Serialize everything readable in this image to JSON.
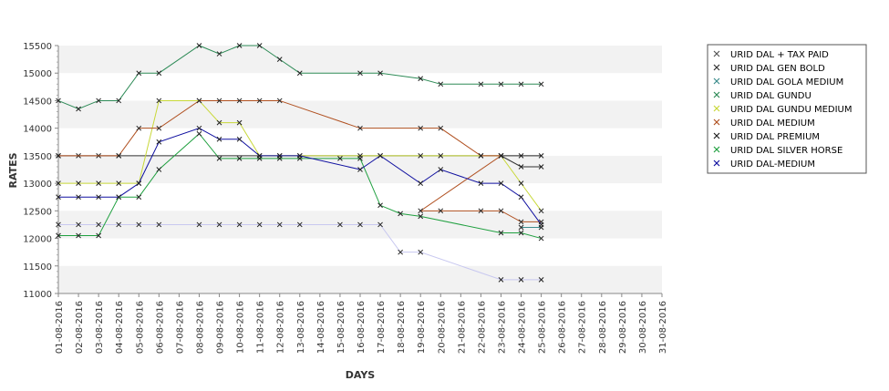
{
  "chart_data": {
    "type": "line",
    "title": "",
    "xlabel": "DAYS",
    "ylabel": "RATES",
    "ylim": [
      11000,
      15500
    ],
    "yticks": [
      11000,
      11500,
      12000,
      12500,
      13000,
      13500,
      14000,
      14500,
      15000,
      15500
    ],
    "grid": "alternating horizontal bands",
    "legend_position": "right",
    "categories": [
      "01-08-2016",
      "02-08-2016",
      "03-08-2016",
      "04-08-2016",
      "05-08-2016",
      "06-08-2016",
      "07-08-2016",
      "08-08-2016",
      "09-08-2016",
      "10-08-2016",
      "11-08-2016",
      "12-08-2016",
      "13-08-2016",
      "14-08-2016",
      "15-08-2016",
      "16-08-2016",
      "17-08-2016",
      "18-08-2016",
      "19-08-2016",
      "20-08-2016",
      "21-08-2016",
      "22-08-2016",
      "23-08-2016",
      "24-08-2016",
      "25-08-2016",
      "26-08-2016",
      "27-08-2016",
      "28-08-2016",
      "29-08-2016",
      "30-08-2016",
      "31-08-2016"
    ],
    "series": [
      {
        "name": "URID DAL + TAX PAID",
        "color": "#c8c8f0",
        "points": [
          [
            0,
            12250
          ],
          [
            1,
            12250
          ],
          [
            2,
            12250
          ],
          [
            3,
            12250
          ],
          [
            4,
            12250
          ],
          [
            5,
            12250
          ],
          [
            7,
            12250
          ],
          [
            8,
            12250
          ],
          [
            9,
            12250
          ],
          [
            10,
            12250
          ],
          [
            11,
            12250
          ],
          [
            12,
            12250
          ],
          [
            14,
            12250
          ],
          [
            15,
            12250
          ],
          [
            16,
            12250
          ],
          [
            17,
            11750
          ],
          [
            18,
            11750
          ],
          [
            22,
            11250
          ],
          [
            23,
            11250
          ],
          [
            24,
            11250
          ]
        ]
      },
      {
        "name": "URID DAL GEN BOLD",
        "color": "#303030",
        "points": [
          [
            0,
            13500
          ],
          [
            1,
            13500
          ],
          [
            2,
            13500
          ],
          [
            3,
            13500
          ],
          [
            22,
            13500
          ],
          [
            23,
            13300
          ],
          [
            24,
            13300
          ]
        ]
      },
      {
        "name": "URID DAL GOLA MEDIUM",
        "color": "#3c8c8c",
        "points": [
          [
            23,
            12200
          ],
          [
            24,
            12200
          ]
        ]
      },
      {
        "name": "URID DAL GUNDU",
        "color": "#2e8b57",
        "points": [
          [
            0,
            14500
          ],
          [
            1,
            14350
          ],
          [
            2,
            14500
          ],
          [
            3,
            14500
          ],
          [
            4,
            15000
          ],
          [
            5,
            15000
          ],
          [
            7,
            15500
          ],
          [
            8,
            15350
          ],
          [
            9,
            15500
          ],
          [
            10,
            15500
          ],
          [
            11,
            15250
          ],
          [
            12,
            15000
          ],
          [
            15,
            15000
          ],
          [
            16,
            15000
          ],
          [
            18,
            14900
          ],
          [
            19,
            14800
          ],
          [
            21,
            14800
          ],
          [
            22,
            14800
          ],
          [
            23,
            14800
          ],
          [
            24,
            14800
          ]
        ]
      },
      {
        "name": "URID DAL GUNDU MEDIUM",
        "color": "#c8d838",
        "points": [
          [
            0,
            13000
          ],
          [
            1,
            13000
          ],
          [
            2,
            13000
          ],
          [
            3,
            13000
          ],
          [
            4,
            13000
          ],
          [
            5,
            14500
          ],
          [
            7,
            14500
          ],
          [
            8,
            14100
          ],
          [
            9,
            14100
          ],
          [
            10,
            13500
          ],
          [
            11,
            13500
          ],
          [
            12,
            13500
          ],
          [
            15,
            13500
          ],
          [
            16,
            13500
          ],
          [
            18,
            13500
          ],
          [
            19,
            13500
          ],
          [
            21,
            13500
          ],
          [
            22,
            13500
          ],
          [
            23,
            13000
          ],
          [
            24,
            12500
          ]
        ]
      },
      {
        "name": "URID DAL MEDIUM",
        "color": "#b05020",
        "points": [
          [
            0,
            13500
          ],
          [
            3,
            13500
          ],
          [
            4,
            14000
          ],
          [
            5,
            14000
          ],
          [
            7,
            14500
          ],
          [
            8,
            14500
          ],
          [
            9,
            14500
          ],
          [
            10,
            14500
          ],
          [
            11,
            14500
          ],
          [
            15,
            14000
          ],
          [
            18,
            14000
          ],
          [
            19,
            14000
          ],
          [
            21,
            13500
          ],
          [
            22,
            13500
          ],
          [
            18,
            12500
          ],
          [
            19,
            12500
          ],
          [
            21,
            12500
          ],
          [
            22,
            12500
          ],
          [
            23,
            12300
          ],
          [
            24,
            12300
          ]
        ]
      },
      {
        "name": "URID DAL PREMIUM",
        "color": "#202020",
        "points": [
          [
            22,
            13500
          ],
          [
            23,
            13500
          ],
          [
            24,
            13500
          ]
        ]
      },
      {
        "name": "URID DAL SILVER HORSE",
        "color": "#20a040",
        "points": [
          [
            0,
            12050
          ],
          [
            1,
            12050
          ],
          [
            2,
            12050
          ],
          [
            3,
            12750
          ],
          [
            4,
            12750
          ],
          [
            5,
            13250
          ],
          [
            7,
            13900
          ],
          [
            8,
            13450
          ],
          [
            9,
            13450
          ],
          [
            10,
            13450
          ],
          [
            11,
            13450
          ],
          [
            12,
            13450
          ],
          [
            14,
            13450
          ],
          [
            15,
            13450
          ],
          [
            16,
            12600
          ],
          [
            17,
            12450
          ],
          [
            18,
            12400
          ],
          [
            22,
            12100
          ],
          [
            23,
            12100
          ],
          [
            24,
            12000
          ]
        ]
      },
      {
        "name": "URID DAL-MEDIUM",
        "color": "#1010a0",
        "points": [
          [
            0,
            12750
          ],
          [
            1,
            12750
          ],
          [
            2,
            12750
          ],
          [
            3,
            12750
          ],
          [
            4,
            13000
          ],
          [
            5,
            13750
          ],
          [
            7,
            14000
          ],
          [
            8,
            13800
          ],
          [
            9,
            13800
          ],
          [
            10,
            13500
          ],
          [
            11,
            13500
          ],
          [
            12,
            13500
          ],
          [
            15,
            13250
          ],
          [
            16,
            13500
          ],
          [
            18,
            13000
          ],
          [
            19,
            13250
          ],
          [
            21,
            13000
          ],
          [
            22,
            13000
          ],
          [
            23,
            12750
          ],
          [
            24,
            12250
          ]
        ]
      }
    ]
  }
}
